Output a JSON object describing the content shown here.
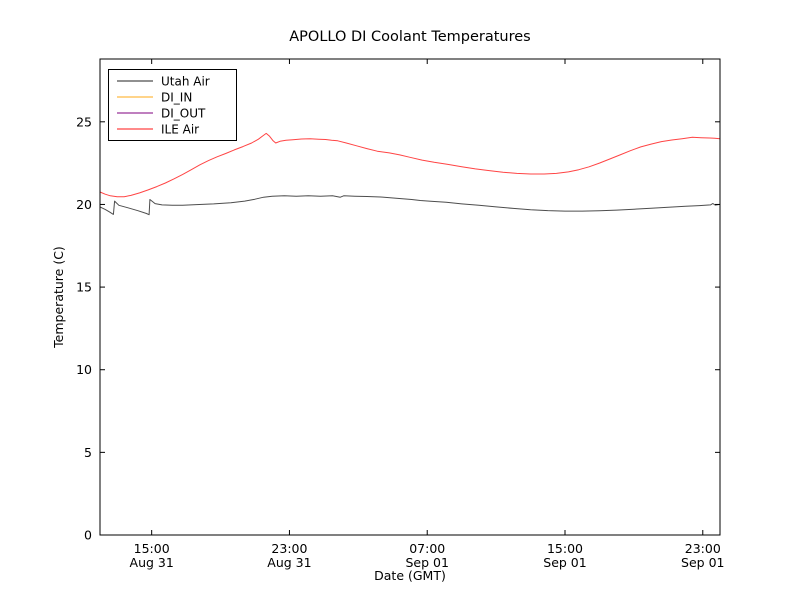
{
  "chart_data": {
    "type": "line",
    "title": "APOLLO DI Coolant Temperatures",
    "xlabel": "Date (GMT)",
    "ylabel": "Temperature (C)",
    "x_unit": "hours since Aug 31 00:00 GMT",
    "xlim": [
      12,
      48
    ],
    "ylim": [
      0,
      28.8
    ],
    "grid": false,
    "yticks": [
      0,
      5,
      10,
      15,
      20,
      25
    ],
    "xticks": [
      {
        "hour": 15,
        "time": "15:00",
        "date": "Aug 31"
      },
      {
        "hour": 23,
        "time": "23:00",
        "date": "Aug 31"
      },
      {
        "hour": 31,
        "time": "07:00",
        "date": "Sep 01"
      },
      {
        "hour": 39,
        "time": "15:00",
        "date": "Sep 01"
      },
      {
        "hour": 47,
        "time": "23:00",
        "date": "Sep 01"
      }
    ],
    "legend": {
      "position": "upper-left",
      "border_color": "#000000",
      "background": "#ffffff"
    },
    "axis_color": "#000000",
    "series": [
      {
        "name": "Utah Air",
        "color": "#4d4d4d",
        "points": [
          [
            12.0,
            19.85
          ],
          [
            12.3,
            19.7
          ],
          [
            12.55,
            19.55
          ],
          [
            12.78,
            19.4
          ],
          [
            12.85,
            20.2
          ],
          [
            13.1,
            19.95
          ],
          [
            13.6,
            19.8
          ],
          [
            14.2,
            19.62
          ],
          [
            14.7,
            19.45
          ],
          [
            14.85,
            19.38
          ],
          [
            14.9,
            20.3
          ],
          [
            15.2,
            20.05
          ],
          [
            15.6,
            19.97
          ],
          [
            16.2,
            19.95
          ],
          [
            16.8,
            19.95
          ],
          [
            17.6,
            19.99
          ],
          [
            18.6,
            20.03
          ],
          [
            19.6,
            20.1
          ],
          [
            20.4,
            20.2
          ],
          [
            21.0,
            20.32
          ],
          [
            21.5,
            20.44
          ],
          [
            22.0,
            20.5
          ],
          [
            22.7,
            20.52
          ],
          [
            23.4,
            20.5
          ],
          [
            24.1,
            20.52
          ],
          [
            24.8,
            20.5
          ],
          [
            25.5,
            20.52
          ],
          [
            25.95,
            20.44
          ],
          [
            26.15,
            20.52
          ],
          [
            26.8,
            20.5
          ],
          [
            27.5,
            20.48
          ],
          [
            28.3,
            20.45
          ],
          [
            29.2,
            20.38
          ],
          [
            30.1,
            20.3
          ],
          [
            30.6,
            20.24
          ],
          [
            31.2,
            20.19
          ],
          [
            32.1,
            20.13
          ],
          [
            33.0,
            20.03
          ],
          [
            34.0,
            19.95
          ],
          [
            35.0,
            19.85
          ],
          [
            36.0,
            19.76
          ],
          [
            37.0,
            19.68
          ],
          [
            38.0,
            19.63
          ],
          [
            39.0,
            19.6
          ],
          [
            40.0,
            19.6
          ],
          [
            41.0,
            19.62
          ],
          [
            42.0,
            19.66
          ],
          [
            43.0,
            19.71
          ],
          [
            44.0,
            19.77
          ],
          [
            45.0,
            19.83
          ],
          [
            46.0,
            19.89
          ],
          [
            46.8,
            19.93
          ],
          [
            47.45,
            19.97
          ],
          [
            47.58,
            20.06
          ],
          [
            47.72,
            19.96
          ],
          [
            48.0,
            20.0
          ]
        ]
      },
      {
        "name": "DI_IN",
        "color": "#ffbb44",
        "points": []
      },
      {
        "name": "DI_OUT",
        "color": "#993399",
        "points": []
      },
      {
        "name": "ILE Air",
        "color": "#ff4444",
        "points": [
          [
            12.0,
            20.75
          ],
          [
            12.3,
            20.62
          ],
          [
            12.6,
            20.52
          ],
          [
            13.0,
            20.46
          ],
          [
            13.4,
            20.47
          ],
          [
            13.8,
            20.55
          ],
          [
            14.3,
            20.7
          ],
          [
            14.8,
            20.88
          ],
          [
            15.3,
            21.08
          ],
          [
            15.8,
            21.3
          ],
          [
            16.3,
            21.55
          ],
          [
            16.8,
            21.82
          ],
          [
            17.3,
            22.1
          ],
          [
            17.8,
            22.4
          ],
          [
            18.3,
            22.65
          ],
          [
            18.8,
            22.88
          ],
          [
            19.3,
            23.08
          ],
          [
            19.8,
            23.3
          ],
          [
            20.3,
            23.5
          ],
          [
            20.8,
            23.72
          ],
          [
            21.2,
            23.95
          ],
          [
            21.45,
            24.15
          ],
          [
            21.65,
            24.3
          ],
          [
            21.85,
            24.12
          ],
          [
            22.05,
            23.85
          ],
          [
            22.2,
            23.72
          ],
          [
            22.45,
            23.82
          ],
          [
            22.8,
            23.88
          ],
          [
            23.2,
            23.92
          ],
          [
            23.7,
            23.96
          ],
          [
            24.2,
            23.97
          ],
          [
            24.7,
            23.95
          ],
          [
            25.1,
            23.93
          ],
          [
            25.45,
            23.88
          ],
          [
            25.8,
            23.85
          ],
          [
            26.3,
            23.72
          ],
          [
            26.9,
            23.55
          ],
          [
            27.5,
            23.38
          ],
          [
            28.1,
            23.22
          ],
          [
            28.8,
            23.12
          ],
          [
            29.4,
            23.0
          ],
          [
            30.0,
            22.85
          ],
          [
            30.7,
            22.68
          ],
          [
            31.4,
            22.55
          ],
          [
            32.2,
            22.42
          ],
          [
            33.0,
            22.28
          ],
          [
            33.8,
            22.15
          ],
          [
            34.6,
            22.05
          ],
          [
            35.4,
            21.95
          ],
          [
            36.2,
            21.88
          ],
          [
            37.0,
            21.84
          ],
          [
            37.8,
            21.84
          ],
          [
            38.5,
            21.88
          ],
          [
            39.2,
            21.97
          ],
          [
            39.8,
            22.1
          ],
          [
            40.4,
            22.28
          ],
          [
            41.0,
            22.5
          ],
          [
            41.6,
            22.75
          ],
          [
            42.2,
            23.0
          ],
          [
            42.8,
            23.25
          ],
          [
            43.4,
            23.48
          ],
          [
            44.0,
            23.65
          ],
          [
            44.6,
            23.8
          ],
          [
            45.2,
            23.9
          ],
          [
            45.8,
            23.98
          ],
          [
            46.4,
            24.06
          ],
          [
            46.9,
            24.04
          ],
          [
            47.4,
            24.02
          ],
          [
            47.7,
            24.0
          ],
          [
            48.0,
            23.97
          ]
        ]
      }
    ]
  }
}
